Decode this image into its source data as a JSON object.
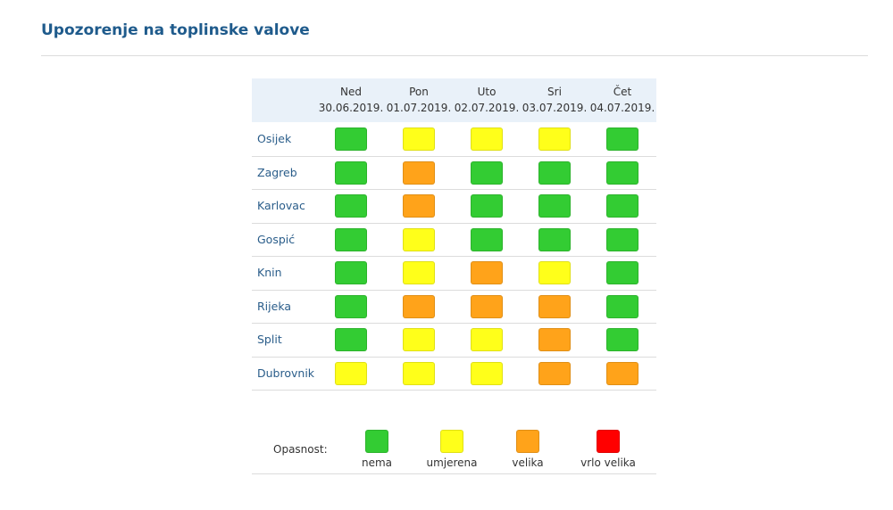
{
  "header": {
    "title": "Upozorenje na toplinske valove"
  },
  "table": {
    "columns": [
      {
        "day": "Ned",
        "date": "30.06.2019."
      },
      {
        "day": "Pon",
        "date": "01.07.2019."
      },
      {
        "day": "Uto",
        "date": "02.07.2019."
      },
      {
        "day": "Sri",
        "date": "03.07.2019."
      },
      {
        "day": "Čet",
        "date": "04.07.2019."
      }
    ],
    "rows": [
      {
        "city": "Osijek",
        "levels": [
          "nema",
          "umjerena",
          "umjerena",
          "umjerena",
          "nema"
        ]
      },
      {
        "city": "Zagreb",
        "levels": [
          "nema",
          "velika",
          "nema",
          "nema",
          "nema"
        ]
      },
      {
        "city": "Karlovac",
        "levels": [
          "nema",
          "velika",
          "nema",
          "nema",
          "nema"
        ]
      },
      {
        "city": "Gospić",
        "levels": [
          "nema",
          "umjerena",
          "nema",
          "nema",
          "nema"
        ]
      },
      {
        "city": "Knin",
        "levels": [
          "nema",
          "umjerena",
          "velika",
          "umjerena",
          "nema"
        ]
      },
      {
        "city": "Rijeka",
        "levels": [
          "nema",
          "velika",
          "velika",
          "velika",
          "nema"
        ]
      },
      {
        "city": "Split",
        "levels": [
          "nema",
          "umjerena",
          "umjerena",
          "velika",
          "nema"
        ]
      },
      {
        "city": "Dubrovnik",
        "levels": [
          "umjerena",
          "umjerena",
          "umjerena",
          "velika",
          "velika"
        ]
      }
    ]
  },
  "legend": {
    "title": "Opasnost:",
    "items": [
      {
        "label": "nema",
        "color": "#33cc33"
      },
      {
        "label": "umjerena",
        "color": "#ffff1a"
      },
      {
        "label": "velika",
        "color": "#ffa31a"
      },
      {
        "label": "vrlo velika",
        "color": "#ff0000"
      }
    ]
  }
}
